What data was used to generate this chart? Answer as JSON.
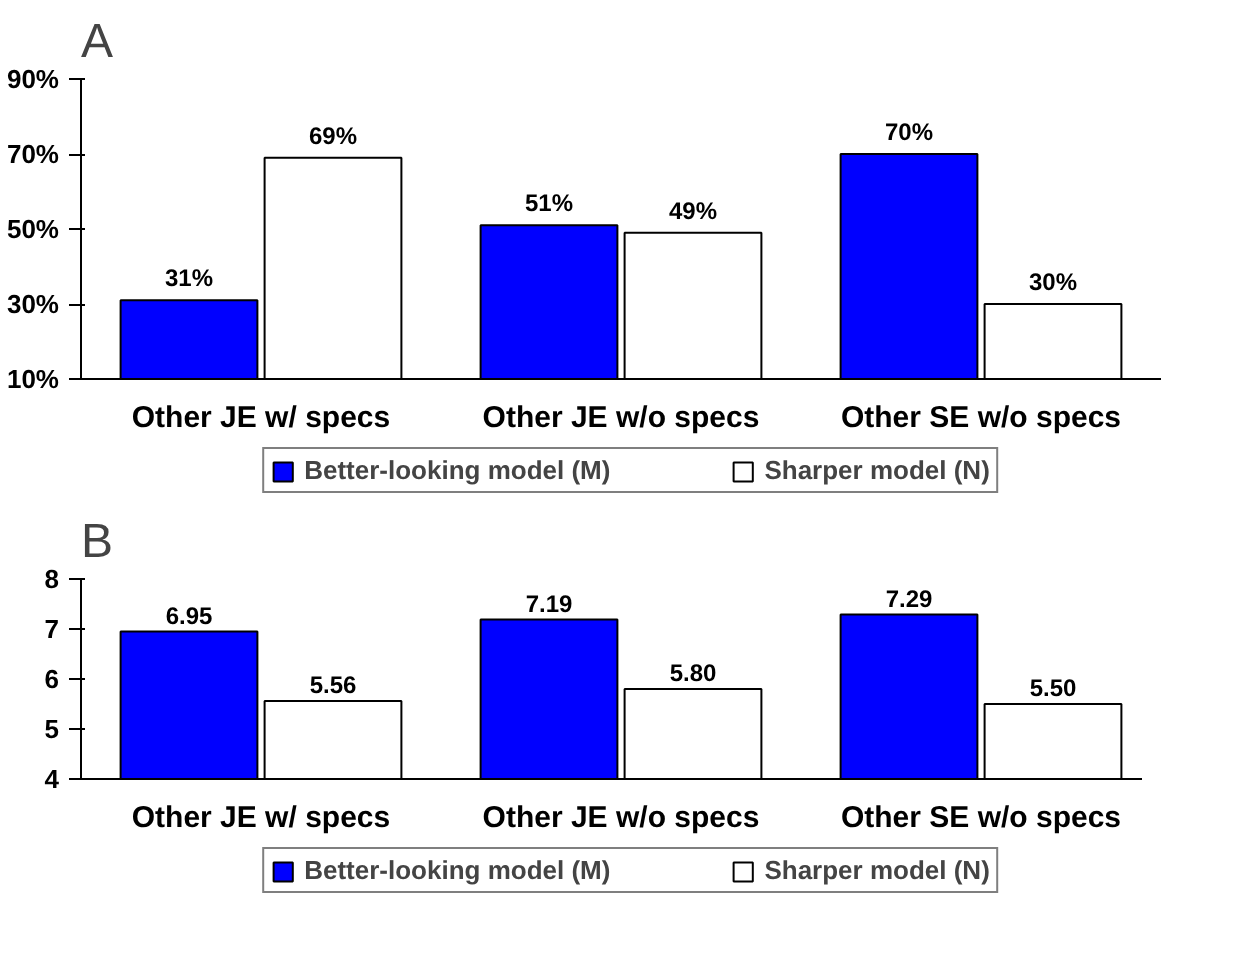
{
  "chart_data": [
    {
      "type": "bar",
      "title": "A",
      "categories": [
        "Other JE w/ specs",
        "Other JE w/o specs",
        "Other SE w/o specs"
      ],
      "series": [
        {
          "name": "Better-looking model (M)",
          "color": "#0000ff",
          "values": [
            31,
            51,
            70
          ],
          "value_labels": [
            "31%",
            "51%",
            "70%"
          ]
        },
        {
          "name": "Sharper model (N)",
          "color": "#ffffff",
          "values": [
            69,
            49,
            30
          ],
          "value_labels": [
            "69%",
            "49%",
            "30%"
          ]
        }
      ],
      "ylim": [
        10,
        90
      ],
      "yticks": [
        {
          "value": 10,
          "label": "10%"
        },
        {
          "value": 30,
          "label": "30%"
        },
        {
          "value": 50,
          "label": "50%"
        },
        {
          "value": 70,
          "label": "70%"
        },
        {
          "value": 90,
          "label": "90%"
        }
      ],
      "grid": false,
      "legend": "bottom"
    },
    {
      "type": "bar",
      "title": "B",
      "categories": [
        "Other JE w/ specs",
        "Other JE w/o specs",
        "Other SE w/o specs"
      ],
      "series": [
        {
          "name": "Better-looking model (M)",
          "color": "#0000ff",
          "values": [
            6.95,
            7.19,
            7.29
          ],
          "value_labels": [
            "6.95",
            "7.19",
            "7.29"
          ]
        },
        {
          "name": "Sharper model (N)",
          "color": "#ffffff",
          "values": [
            5.56,
            5.8,
            5.5
          ],
          "value_labels": [
            "5.56",
            "5.80",
            "5.50"
          ]
        }
      ],
      "ylim": [
        4,
        8
      ],
      "yticks": [
        4,
        5,
        6,
        7,
        8
      ],
      "grid": false,
      "legend": "bottom"
    }
  ]
}
